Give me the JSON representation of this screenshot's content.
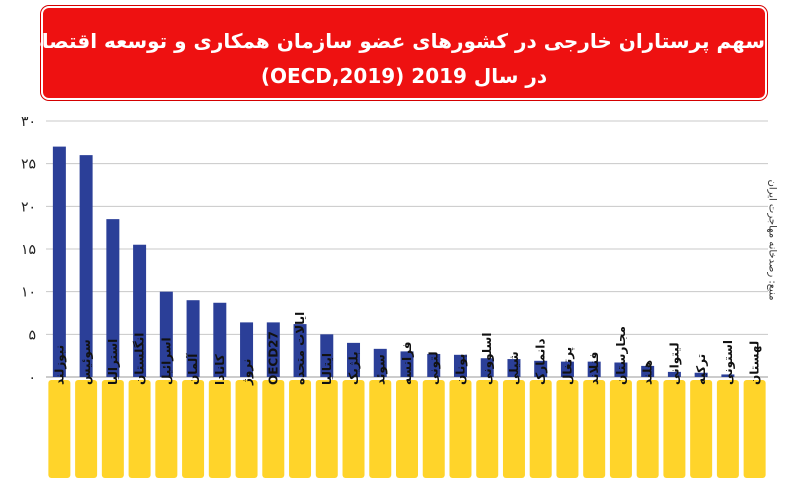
{
  "title": {
    "line1": "سهم پرستاران خارجی در کشورهای عضو سازمان همکاری و توسعه اقتصادی",
    "line2": "در سال 2019 (OECD,2019)"
  },
  "source": "منبع: رصدخانه مهاجرت ایران",
  "colors": {
    "bar": "#2b3f98",
    "label_bg": "#ffd42a",
    "title_bg": "#ee1111",
    "grid": "#c8c8c8"
  },
  "chart_data": {
    "type": "bar",
    "categories": [
      "نیوزلند",
      "سوئیس",
      "استرالیا",
      "انگلستان",
      "اسرائیل",
      "آلمان",
      "کانادا",
      "نروژ",
      "OECD27",
      "ایالات متحده",
      "ایتالیا",
      "بلژیک",
      "سوئد",
      "فرانسه",
      "لتونی",
      "یونان",
      "اسلوونی",
      "شیلی",
      "دانمارک",
      "پرتغال",
      "فنلاند",
      "مجارستان",
      "هلند",
      "لیتوانی",
      "ترکیه",
      "استونی",
      "لهستان"
    ],
    "values": [
      27,
      26,
      18.5,
      15.5,
      10,
      9,
      8.7,
      6.4,
      6.4,
      6.2,
      5,
      4,
      3.3,
      3,
      2.7,
      2.6,
      2.2,
      2.1,
      1.9,
      1.8,
      1.8,
      1.7,
      1.3,
      0.6,
      0.5,
      0.3,
      0
    ],
    "yticks": [
      "۰",
      "۵",
      "۱۰",
      "۱۵",
      "۲۰",
      "۲۵",
      "۳۰"
    ],
    "ylim": [
      0,
      30
    ],
    "grid": true
  }
}
